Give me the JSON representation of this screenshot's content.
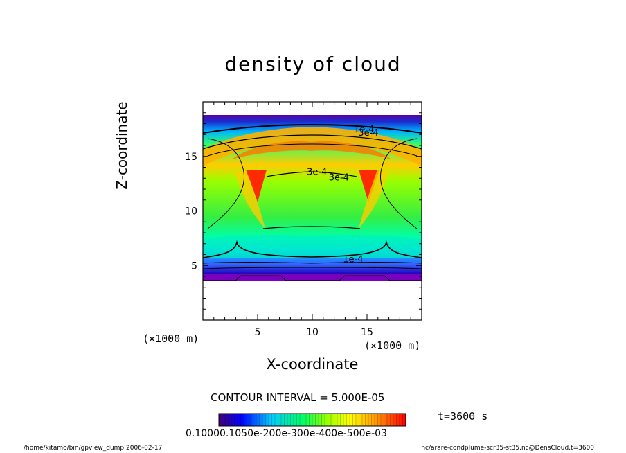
{
  "chart_data": {
    "type": "heatmap",
    "title": "density of cloud",
    "xlabel": "X-coordinate",
    "ylabel": "Z-coordinate",
    "x_unit": "(×1000 m)",
    "y_unit": "(×1000 m)",
    "xlim": [
      0,
      20
    ],
    "ylim": [
      0,
      20
    ],
    "x_ticks": [
      5,
      10,
      15
    ],
    "y_ticks": [
      5,
      10,
      15
    ],
    "contour_labels": [
      "1e-4",
      "3e-4",
      "3e-4",
      "3e-4",
      "1e-4"
    ],
    "colorbar": {
      "min": 0.0,
      "max": 0.00055,
      "tick_labels_text": "0.10000.1050e-200e-300e-400e-500e-03",
      "colormap": [
        "#330066",
        "#0000ff",
        "#00ccff",
        "#00ff66",
        "#99ff00",
        "#ffff00",
        "#ff9900",
        "#ff0000"
      ]
    },
    "contour_interval": "CONTOUR INTERVAL = 5.000E-05",
    "time_label": "t=3600 s"
  },
  "footer": {
    "left": "/home/kitamo/bin/gpview_dump  2006-02-17",
    "right": "nc/arare-condplume-scr35-st35.nc@DensCloud,t=3600"
  }
}
